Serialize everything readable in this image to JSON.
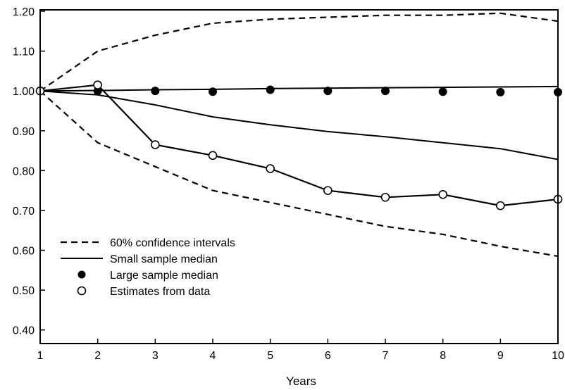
{
  "chart_data": {
    "type": "line",
    "title": "",
    "xlabel": "Years",
    "ylabel": "",
    "xlim": [
      1,
      10
    ],
    "ylim": [
      0.38,
      1.2
    ],
    "x_ticks": [
      1,
      2,
      3,
      4,
      5,
      6,
      7,
      8,
      9,
      10
    ],
    "x_tick_labels": [
      "1",
      "2",
      "3",
      "4",
      "5",
      "6",
      "7",
      "8",
      "9",
      "10"
    ],
    "y_ticks": [
      0.4,
      0.5,
      0.6,
      0.7,
      0.8,
      0.9,
      1.0,
      1.1,
      1.2
    ],
    "y_tick_labels": [
      "0.40",
      "0.50",
      "0.60",
      "0.70",
      "0.80",
      "0.90",
      "1.00",
      "1.10",
      "1.20"
    ],
    "grid": false,
    "legend_position": "bottom-left",
    "series": [
      {
        "name": "60% confidence intervals",
        "style": "dashed-line",
        "x": [
          1,
          2,
          3,
          4,
          5,
          6,
          7,
          8,
          9,
          10
        ],
        "y": [
          1.0,
          1.1,
          1.14,
          1.17,
          1.18,
          1.185,
          1.19,
          1.19,
          1.195,
          1.175
        ]
      },
      {
        "name": "",
        "style": "dashed-line",
        "x": [
          1,
          2,
          3,
          4,
          5,
          6,
          7,
          8,
          9,
          10
        ],
        "y": [
          1.0,
          0.87,
          0.81,
          0.75,
          0.72,
          0.69,
          0.66,
          0.64,
          0.61,
          0.585
        ]
      },
      {
        "name": "Small sample median",
        "style": "solid-line",
        "x": [
          1,
          2,
          3,
          4,
          5,
          6,
          7,
          8,
          9,
          10
        ],
        "y": [
          1.0,
          0.99,
          0.965,
          0.935,
          0.915,
          0.898,
          0.885,
          0.87,
          0.855,
          0.828
        ]
      },
      {
        "name": "",
        "style": "solid-line",
        "x": [
          1,
          2,
          3,
          4,
          5,
          6,
          7,
          8,
          9,
          10
        ],
        "y": [
          1.0,
          1.001,
          1.003,
          1.004,
          1.006,
          1.007,
          1.008,
          1.009,
          1.01,
          1.011
        ]
      },
      {
        "name": "Large sample median",
        "style": "filled-markers",
        "x": [
          1,
          2,
          3,
          4,
          5,
          6,
          7,
          8,
          9,
          10
        ],
        "y": [
          1.0,
          1.0,
          1.0,
          0.998,
          1.003,
          1.0,
          1.0,
          0.998,
          0.997,
          0.997
        ]
      },
      {
        "name": "Estimates from data",
        "style": "open-markers-line",
        "x": [
          1,
          2,
          3,
          4,
          5,
          6,
          7,
          8,
          9,
          10
        ],
        "y": [
          1.0,
          1.015,
          0.865,
          0.838,
          0.805,
          0.75,
          0.733,
          0.74,
          0.712,
          0.728
        ]
      }
    ]
  }
}
